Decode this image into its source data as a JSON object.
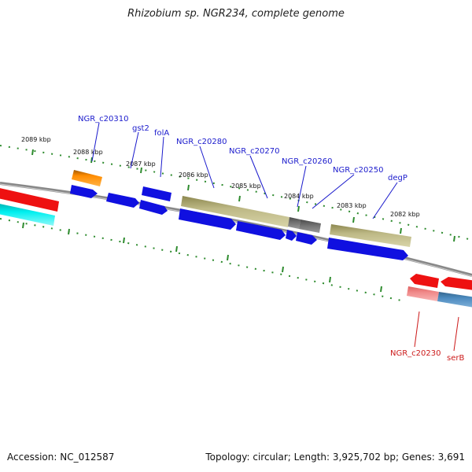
{
  "header": {
    "title": "Rhizobium sp. NGR234, complete genome"
  },
  "footer": {
    "accession": "Accession: NC_012587",
    "topology": "Topology: circular; Length: 3,925,702 bp; Genes: 3,691"
  },
  "scale": {
    "labels": [
      "2089 kbp",
      "2088 kbp",
      "2087 kbp",
      "2086 kbp",
      "2085 kbp",
      "2084 kbp",
      "2083 kbp",
      "2082 kbp"
    ]
  },
  "genes_forward": [
    {
      "name": "NGR_c20310"
    },
    {
      "name": "gst2"
    },
    {
      "name": "folA"
    },
    {
      "name": "NGR_c20280"
    },
    {
      "name": "NGR_c20270"
    },
    {
      "name": "NGR_c20260"
    },
    {
      "name": "NGR_c20250"
    },
    {
      "name": "degP"
    }
  ],
  "genes_reverse": [
    {
      "name": "NGR_c20230"
    },
    {
      "name": "serB"
    }
  ],
  "colors": {
    "backbone": "#777777",
    "gene_blue": "#1010e0",
    "gene_orange": "#ff8c00",
    "gene_olive": "#b5b07a",
    "gene_gray": "#6b6b6b",
    "gene_red": "#ee1111",
    "gene_pink": "#f08080",
    "gene_cyan": "#00e0e0",
    "gene_steel": "#4682b4",
    "tick_green": "#2e8b2e",
    "label_blue": "#1a1acc",
    "label_red": "#cc1a1a"
  }
}
